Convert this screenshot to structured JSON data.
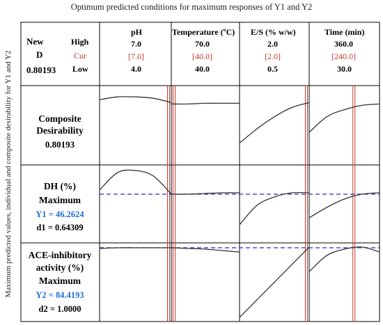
{
  "title": "Optimum predicted conditions for maximum responses of Y1 and Y2",
  "y_axis_label": "Maximum predicted values, individual and composite desirability for Y1 and Y2",
  "header": {
    "new_label": "New",
    "d_label": "D",
    "d_value": "0.80193",
    "high_label": "High",
    "cur_label": "Cur",
    "low_label": "Low",
    "columns": [
      {
        "name": "pH",
        "high": "7.0",
        "cur": "[7.0]",
        "low": "4.0"
      },
      {
        "name": "Temperature (ºC)",
        "high": "70.0",
        "cur": "[40.0]",
        "low": "40.0"
      },
      {
        "name": "E/S (% w/w)",
        "high": "2.0",
        "cur": "[2.0]",
        "low": "0.5"
      },
      {
        "name": "Time (min)",
        "high": "360.0",
        "cur": "[240.0]",
        "low": "30.0"
      }
    ]
  },
  "rows": [
    {
      "lines": [
        "Composite",
        "Desirability",
        "0.80193"
      ]
    },
    {
      "lines": [
        "DH (%)",
        "Maximum"
      ],
      "y_label": "Y1 = 46.2624",
      "d_label": "d1 = 0.64309"
    },
    {
      "lines": [
        "ACE-inhibitory",
        "activity (%)",
        "Maximum"
      ],
      "y_label": "Y2 = 84.4193",
      "d_label": "d2 = 1.0000"
    }
  ],
  "colors": {
    "curve": "#333333",
    "current_setting_line": "#c0392b",
    "target_dashed": "#1f2fbf",
    "value_text": "#1f6fd1",
    "cur_text": "#c0392b",
    "grid": "#000000"
  },
  "chart_data": {
    "type": "line",
    "factors": [
      "pH",
      "Temperature (ºC)",
      "E/S (% w/w)",
      "Time (min)"
    ],
    "ranges": [
      [
        4.0,
        7.0
      ],
      [
        40.0,
        70.0
      ],
      [
        0.5,
        2.0
      ],
      [
        30.0,
        360.0
      ]
    ],
    "current": [
      7.0,
      40.0,
      2.0,
      240.0
    ],
    "responses": [
      {
        "name": "Composite Desirability",
        "value": 0.80193,
        "x": [
          [
            4.0,
            4.75,
            5.5,
            6.25,
            7.0
          ],
          [
            40,
            47.5,
            55,
            62.5,
            70
          ],
          [
            0.5,
            0.875,
            1.25,
            1.625,
            2.0
          ],
          [
            30,
            112.5,
            195,
            277.5,
            360
          ]
        ],
        "y": [
          [
            0.86,
            0.9,
            0.9,
            0.88,
            0.82
          ],
          [
            0.8,
            0.8,
            0.81,
            0.81,
            0.81
          ],
          [
            0.25,
            0.45,
            0.62,
            0.75,
            0.82
          ],
          [
            0.4,
            0.62,
            0.72,
            0.78,
            0.8
          ]
        ]
      },
      {
        "name": "DH (%)",
        "value": 46.2624,
        "desirability": 0.64309,
        "x": [
          [
            4.0,
            4.75,
            5.5,
            6.25,
            7.0
          ],
          [
            40,
            47.5,
            55,
            62.5,
            70
          ],
          [
            0.5,
            0.875,
            1.25,
            1.625,
            2.0
          ],
          [
            30,
            112.5,
            195,
            277.5,
            360
          ]
        ],
        "y": [
          [
            0.7,
            0.95,
            0.98,
            0.9,
            0.64
          ],
          [
            0.64,
            0.64,
            0.65,
            0.66,
            0.66
          ],
          [
            0.2,
            0.48,
            0.6,
            0.66,
            0.66
          ],
          [
            0.3,
            0.45,
            0.57,
            0.64,
            0.66
          ]
        ]
      },
      {
        "name": "ACE-inhibitory activity (%)",
        "value": 84.4193,
        "desirability": 1.0,
        "x": [
          [
            4.0,
            4.75,
            5.5,
            6.25,
            7.0
          ],
          [
            40,
            47.5,
            55,
            62.5,
            70
          ],
          [
            0.5,
            0.875,
            1.25,
            1.625,
            2.0
          ],
          [
            30,
            112.5,
            195,
            277.5,
            360
          ]
        ],
        "y": [
          [
            0.98,
            0.99,
            0.99,
            0.99,
            0.99
          ],
          [
            0.99,
            0.98,
            0.97,
            0.95,
            0.93
          ],
          [
            0.0,
            0.25,
            0.5,
            0.75,
            1.0
          ],
          [
            0.65,
            0.88,
            0.97,
            1.0,
            0.93
          ]
        ]
      }
    ]
  }
}
